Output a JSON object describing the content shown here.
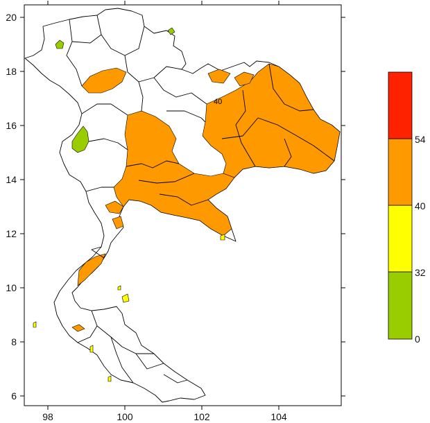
{
  "map": {
    "x_ticks": [
      "98",
      "100",
      "102",
      "104"
    ],
    "y_ticks": [
      "6",
      "8",
      "10",
      "12",
      "14",
      "16",
      "18",
      "20"
    ],
    "contour_label": "40"
  },
  "legend": {
    "bins": [
      {
        "color": "#9acd00"
      },
      {
        "color": "#ffff00"
      },
      {
        "color": "#ff9900"
      },
      {
        "color": "#ff2200"
      }
    ],
    "labels": [
      "0",
      "32",
      "40",
      "54"
    ]
  },
  "colors": {
    "low": "#9acd00",
    "mid": "#ffff00",
    "high": "#ff9900",
    "top": "#ff2200"
  }
}
